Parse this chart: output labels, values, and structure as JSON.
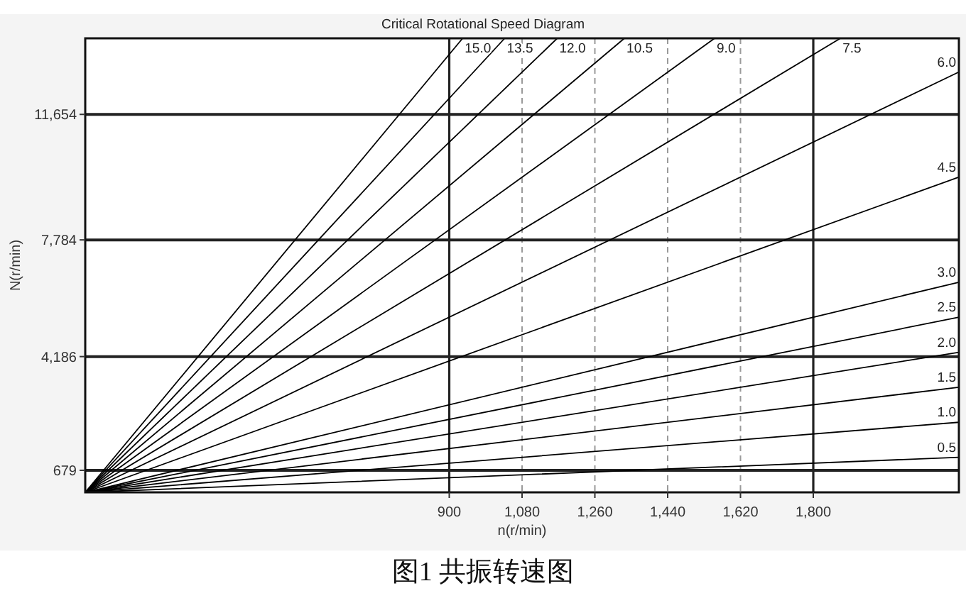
{
  "chart_data": {
    "type": "line",
    "title": "Critical Rotational Speed Diagram",
    "xlabel": "n(r/min)",
    "ylabel": "N(r/min)",
    "annotations": [
      "图1 共振转速图"
    ],
    "xlim": [
      0,
      2160
    ],
    "ylim": [
      0,
      14000
    ],
    "xticks": [
      900,
      {
        "value": 1080,
        "label": "1,080"
      },
      {
        "value": 1260,
        "label": "1,260"
      },
      {
        "value": 1440,
        "label": "1,440"
      },
      {
        "value": 1620,
        "label": "1,620"
      },
      {
        "value": 1800,
        "label": "1,800"
      }
    ],
    "yticks": [
      679,
      {
        "value": 4186,
        "label": "4,186"
      },
      {
        "value": 7784,
        "label": "7,784"
      },
      {
        "value": 11654,
        "label": "11,654"
      }
    ],
    "series": [
      {
        "name": "0.5",
        "color": "#000000",
        "x": [
          0,
          2160
        ],
        "values": [
          0,
          1080
        ]
      },
      {
        "name": "1.0",
        "color": "#000000",
        "x": [
          0,
          2160
        ],
        "values": [
          0,
          2160
        ]
      },
      {
        "name": "1.5",
        "color": "#000000",
        "x": [
          0,
          2160
        ],
        "values": [
          0,
          3240
        ]
      },
      {
        "name": "2.0",
        "color": "#000000",
        "x": [
          0,
          2160
        ],
        "values": [
          0,
          4320
        ]
      },
      {
        "name": "2.5",
        "color": "#000000",
        "x": [
          0,
          2160
        ],
        "values": [
          0,
          5400
        ]
      },
      {
        "name": "3.0",
        "color": "#000000",
        "x": [
          0,
          2160
        ],
        "values": [
          0,
          6480
        ]
      },
      {
        "name": "4.5",
        "color": "#000000",
        "x": [
          0,
          2160
        ],
        "values": [
          0,
          9720
        ]
      },
      {
        "name": "6.0",
        "color": "#000000",
        "x": [
          0,
          2160
        ],
        "values": [
          0,
          12960
        ]
      },
      {
        "name": "7.5",
        "color": "#000000",
        "x": [
          0,
          1867
        ],
        "values": [
          0,
          14000
        ]
      },
      {
        "name": "9.0",
        "color": "#000000",
        "x": [
          0,
          1556
        ],
        "values": [
          0,
          14000
        ]
      },
      {
        "name": "10.5",
        "color": "#000000",
        "x": [
          0,
          1333
        ],
        "values": [
          0,
          14000
        ]
      },
      {
        "name": "12.0",
        "color": "#000000",
        "x": [
          0,
          1167
        ],
        "values": [
          0,
          14000
        ]
      },
      {
        "name": "13.5",
        "color": "#000000",
        "x": [
          0,
          1037
        ],
        "values": [
          0,
          14000
        ]
      },
      {
        "name": "15.0",
        "color": "#000000",
        "x": [
          0,
          933
        ],
        "values": [
          0,
          14000
        ]
      }
    ],
    "ref_lines": [
      {
        "axis": "x",
        "value": 900,
        "color": "#222222",
        "line_style": "solid"
      },
      {
        "axis": "x",
        "value": 1080,
        "color": "#9a9a9a",
        "line_style": "dashed"
      },
      {
        "axis": "x",
        "value": 1260,
        "color": "#9a9a9a",
        "line_style": "dashed"
      },
      {
        "axis": "x",
        "value": 1440,
        "color": "#9a9a9a",
        "line_style": "dashed"
      },
      {
        "axis": "x",
        "value": 1620,
        "color": "#9a9a9a",
        "line_style": "dashed"
      },
      {
        "axis": "x",
        "value": 1800,
        "color": "#222222",
        "line_style": "solid"
      },
      {
        "axis": "y",
        "value": 679,
        "color": "#222222",
        "line_style": "solid"
      },
      {
        "axis": "y",
        "value": 4186,
        "color": "#222222",
        "line_style": "solid"
      },
      {
        "axis": "y",
        "value": 7784,
        "color": "#222222",
        "line_style": "solid"
      },
      {
        "axis": "y",
        "value": 11654,
        "color": "#222222",
        "line_style": "solid"
      }
    ]
  }
}
